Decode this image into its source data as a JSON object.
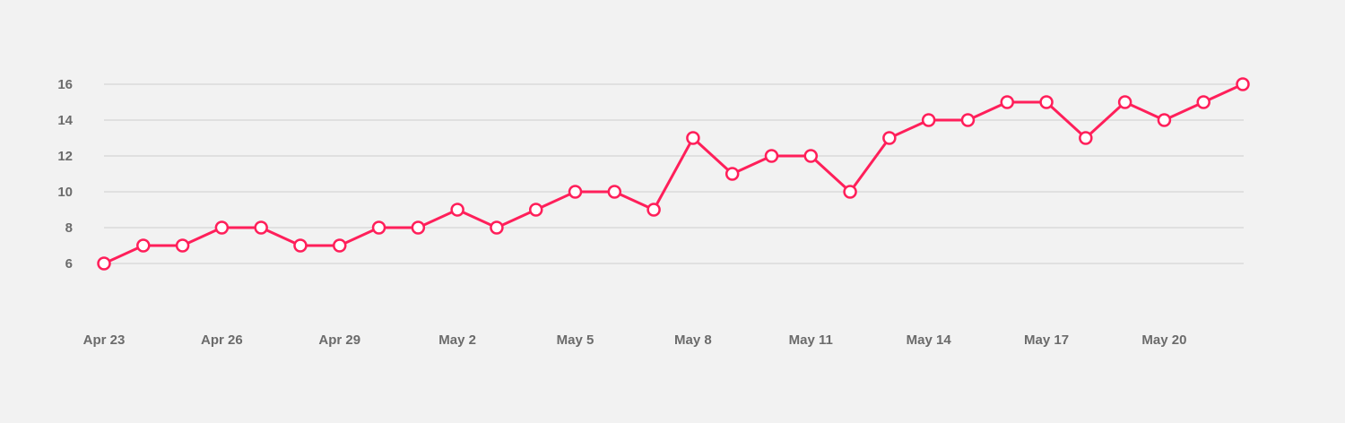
{
  "chart_data": {
    "type": "line",
    "title": "",
    "xlabel": "",
    "ylabel": "",
    "x": [
      "Apr 23",
      "Apr 24",
      "Apr 25",
      "Apr 26",
      "Apr 27",
      "Apr 28",
      "Apr 29",
      "Apr 30",
      "May 1",
      "May 2",
      "May 3",
      "May 4",
      "May 5",
      "May 6",
      "May 7",
      "May 8",
      "May 9",
      "May 10",
      "May 11",
      "May 12",
      "May 13",
      "May 14",
      "May 15",
      "May 16",
      "May 17",
      "May 18",
      "May 19",
      "May 20",
      "May 21",
      "May 22"
    ],
    "x_tick_labels": [
      "Apr 23",
      "Apr 26",
      "Apr 29",
      "May 2",
      "May 5",
      "May 8",
      "May 11",
      "May 14",
      "May 17",
      "May 20"
    ],
    "y_ticks": [
      6,
      8,
      10,
      12,
      14,
      16
    ],
    "ylim": [
      6,
      16
    ],
    "grid": true,
    "legend": "none",
    "series": [
      {
        "values": [
          6,
          7,
          7,
          8,
          8,
          7,
          7,
          8,
          8,
          9,
          8,
          9,
          10,
          10,
          9,
          13,
          11,
          12,
          12,
          10,
          13,
          14,
          14,
          15,
          15,
          13,
          15,
          14,
          15,
          16
        ],
        "color": "#ff1f5a"
      }
    ]
  }
}
